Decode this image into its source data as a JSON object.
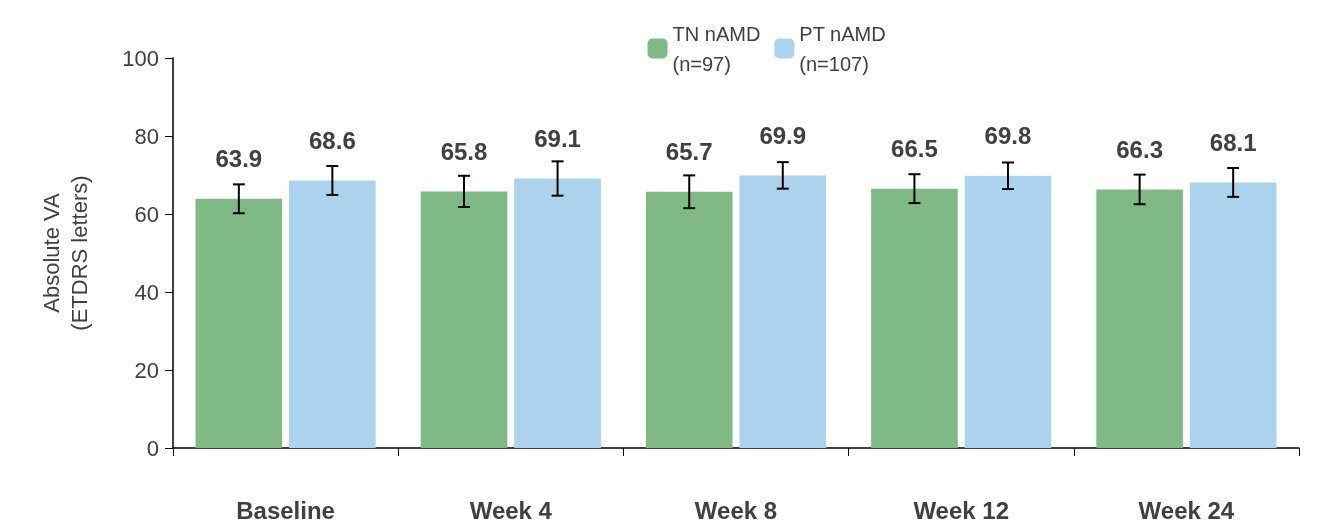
{
  "chart_data": {
    "type": "bar",
    "ylabel": "Absolute VA\n(ETDRS letters)",
    "categories": [
      "Baseline",
      "Week 4",
      "Week 8",
      "Week 12",
      "Week 24"
    ],
    "series": [
      {
        "name": "TN nAMD\n(n=97)",
        "color": "#7fba86",
        "values": [
          63.9,
          65.8,
          65.7,
          66.5,
          66.3
        ],
        "errors": [
          3.7,
          4.0,
          4.2,
          3.7,
          3.8
        ]
      },
      {
        "name": "PT nAMD\n(n=107)",
        "color": "#abd3ed",
        "values": [
          68.6,
          69.1,
          69.9,
          69.8,
          68.1
        ],
        "errors": [
          3.7,
          4.4,
          3.4,
          3.4,
          3.7
        ]
      }
    ],
    "ylim": [
      0,
      100
    ],
    "yticks": [
      0,
      20,
      40,
      60,
      80,
      100
    ],
    "grid": false,
    "legend": "top right",
    "data_labels": true
  }
}
